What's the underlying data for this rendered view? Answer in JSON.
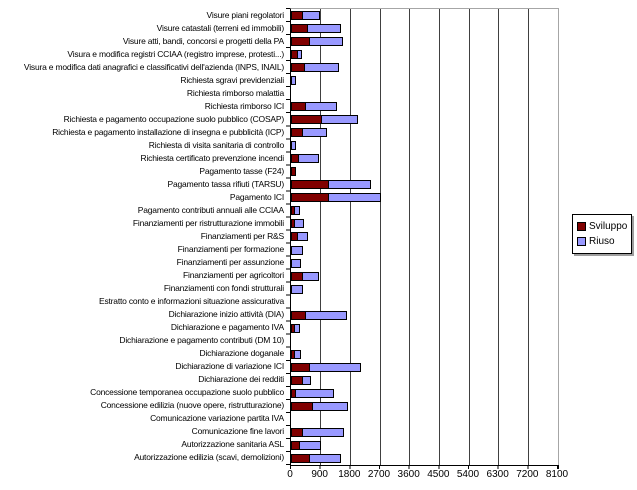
{
  "chart_data": {
    "type": "bar",
    "orientation": "horizontal",
    "stacked": true,
    "title": "",
    "xlabel": "",
    "ylabel": "",
    "xlim": [
      0,
      8100
    ],
    "xticks": [
      0,
      900,
      1800,
      2700,
      3600,
      4500,
      5400,
      6300,
      7200,
      8100
    ],
    "grid": "vertical",
    "legend_position": "right",
    "categories": [
      "Visure piani regolatori",
      "Visure catastali (terreni ed immobili)",
      "Visure atti, bandi, concorsi e progetti della PA",
      "Visura e modifica registri CCIAA (registro imprese, protesti...)",
      "Visura e modifica dati anagrafici e classificativi dell'azienda (INPS, INAIL)",
      "Richiesta sgravi previdenziali",
      "Richiesta rimborso malattia",
      "Richiesta rimborso ICI",
      "Richiesta e pagamento occupazione suolo pubblico (COSAP)",
      "Richiesta e pagamento installazione di insegna e pubblicità (ICP)",
      "Richiesta di visita sanitaria di controllo",
      "Richiesta certificato prevenzione incendi",
      "Pagamento tasse (F24)",
      "Pagamento tassa rifiuti (TARSU)",
      "Pagamento ICI",
      "Pagamento contributi annuali alle CCIAA",
      "Finanziamenti per ristrutturazione immobili",
      "Finanziamenti per R&S",
      "Finanziamenti per formazione",
      "Finanziamenti per assunzione",
      "Finanziamenti per agricoltori",
      "Finanziamenti con fondi strutturali",
      "Estratto conto e informazioni situazione assicurativa",
      "Dichiarazione inizio attività (DIA)",
      "Dichiarazione e pagamento IVA",
      "Dichiarazione e pagamento contributi (DM 10)",
      "Dichiarazione doganale",
      "Dichiarazione di variazione ICI",
      "Dichiarazione dei redditi",
      "Concessione temporanea occupazione suolo pubblico",
      "Concessione edilizia (nuove opere, ristrutturazione)",
      "Comunicazione variazione partita IVA",
      "Comunicazione fine lavori",
      "Autorizzazione sanitaria ASL",
      "Autorizzazione edilizia (scavi, demolizioni)"
    ],
    "series": [
      {
        "name": "Sviluppo",
        "color": "#800000",
        "values": [
          300,
          450,
          510,
          150,
          370,
          0,
          0,
          400,
          870,
          300,
          0,
          180,
          100,
          1100,
          1100,
          60,
          60,
          150,
          0,
          0,
          300,
          0,
          0,
          400,
          60,
          0,
          50,
          520,
          300,
          80,
          600,
          0,
          300,
          200,
          520
        ]
      },
      {
        "name": "Riuso",
        "color": "#9999FF",
        "values": [
          500,
          970,
          980,
          80,
          985,
          100,
          0,
          900,
          1080,
          700,
          80,
          570,
          0,
          1250,
          1550,
          120,
          250,
          280,
          300,
          230,
          470,
          300,
          0,
          1220,
          120,
          0,
          170,
          1500,
          210,
          1120,
          1030,
          0,
          1220,
          620,
          920
        ]
      }
    ]
  }
}
